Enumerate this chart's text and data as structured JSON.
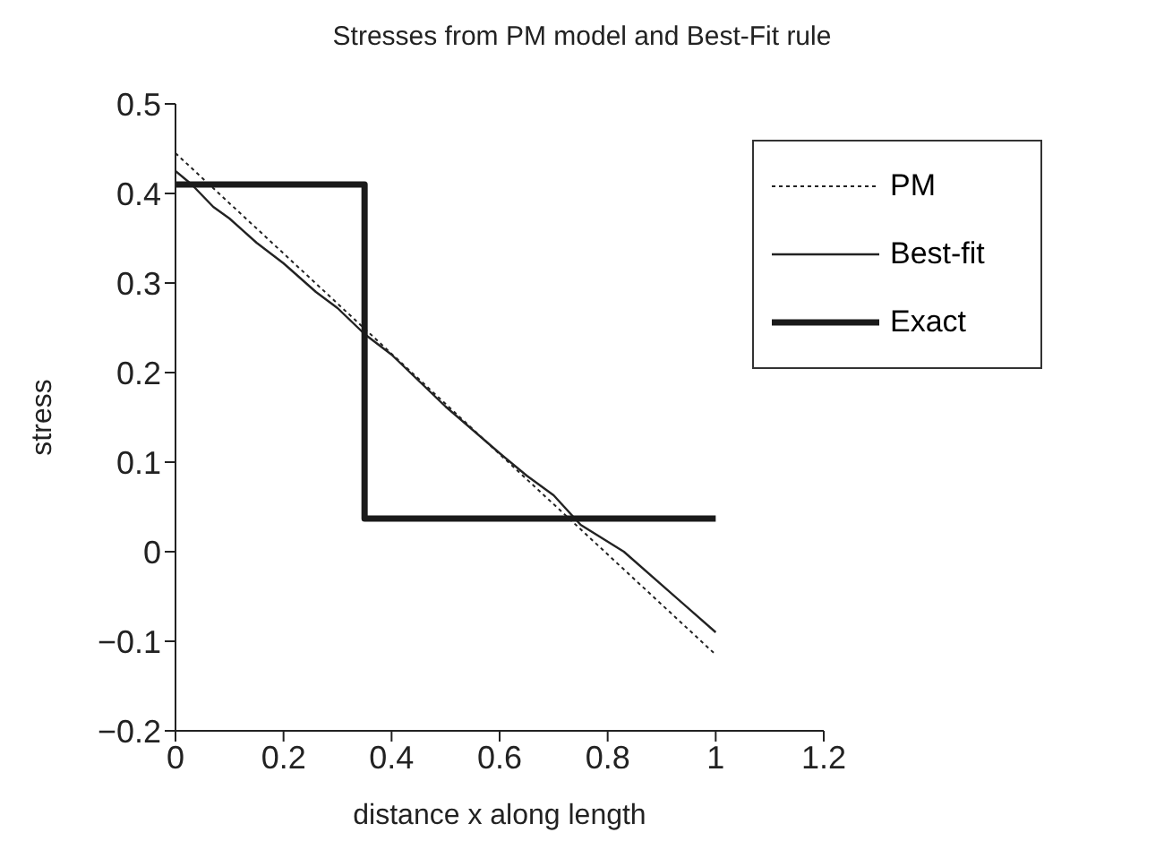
{
  "chart_data": {
    "type": "line",
    "title": "Stresses from PM model and Best-Fit rule",
    "xlabel": "distance x along length",
    "ylabel": "stress",
    "xlim": [
      0,
      1.2
    ],
    "xticks": [
      0,
      0.2,
      0.4,
      0.6,
      0.8,
      1,
      1.2
    ],
    "ylim": [
      -0.2,
      0.5
    ],
    "yticks": [
      -0.2,
      -0.1,
      0,
      0.1,
      0.2,
      0.3,
      0.4,
      0.5
    ],
    "grid": false,
    "legend": "top right",
    "marker": "none",
    "series": [
      {
        "name": "PM",
        "color": "#222222",
        "line_style": "dotted",
        "x": [
          0,
          0.5,
          1
        ],
        "values": [
          0.445,
          0.165,
          -0.115
        ]
      },
      {
        "name": "Best-fit",
        "color": "#222222",
        "line_style": "solid",
        "x": [
          0,
          0.03,
          0.07,
          0.1,
          0.15,
          0.2,
          0.26,
          0.3,
          0.35,
          0.4,
          0.5,
          0.6,
          0.65,
          0.7,
          0.75,
          0.83,
          1
        ],
        "values": [
          0.425,
          0.41,
          0.385,
          0.372,
          0.345,
          0.322,
          0.29,
          0.272,
          0.243,
          0.22,
          0.162,
          0.11,
          0.085,
          0.063,
          0.03,
          0,
          -0.09
        ]
      },
      {
        "name": "Exact",
        "color": "#1a1a1a",
        "line_style": "solid",
        "x": [
          0,
          0.35,
          0.35,
          1
        ],
        "values": [
          0.41,
          0.41,
          0.037,
          0.037
        ]
      }
    ]
  }
}
